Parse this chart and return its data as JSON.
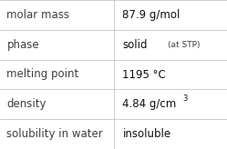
{
  "rows": [
    {
      "label": "molar mass",
      "value": "87.9 g/mol",
      "annotation": null,
      "superscript": null
    },
    {
      "label": "phase",
      "value": "solid",
      "annotation": "(at STP)",
      "superscript": null
    },
    {
      "label": "melting point",
      "value": "1195 °C",
      "annotation": null,
      "superscript": null
    },
    {
      "label": "density",
      "value": "4.84 g/cm",
      "annotation": null,
      "superscript": "3"
    },
    {
      "label": "solubility in water",
      "value": "insoluble",
      "annotation": null,
      "superscript": null
    }
  ],
  "col_split": 0.5,
  "bg_color": "#ffffff",
  "line_color": "#bbbbbb",
  "label_font_size": 8.5,
  "value_font_size": 8.5,
  "annotation_font_size": 6.5,
  "superscript_font_size": 6.0,
  "label_color": "#404040",
  "value_color": "#111111"
}
